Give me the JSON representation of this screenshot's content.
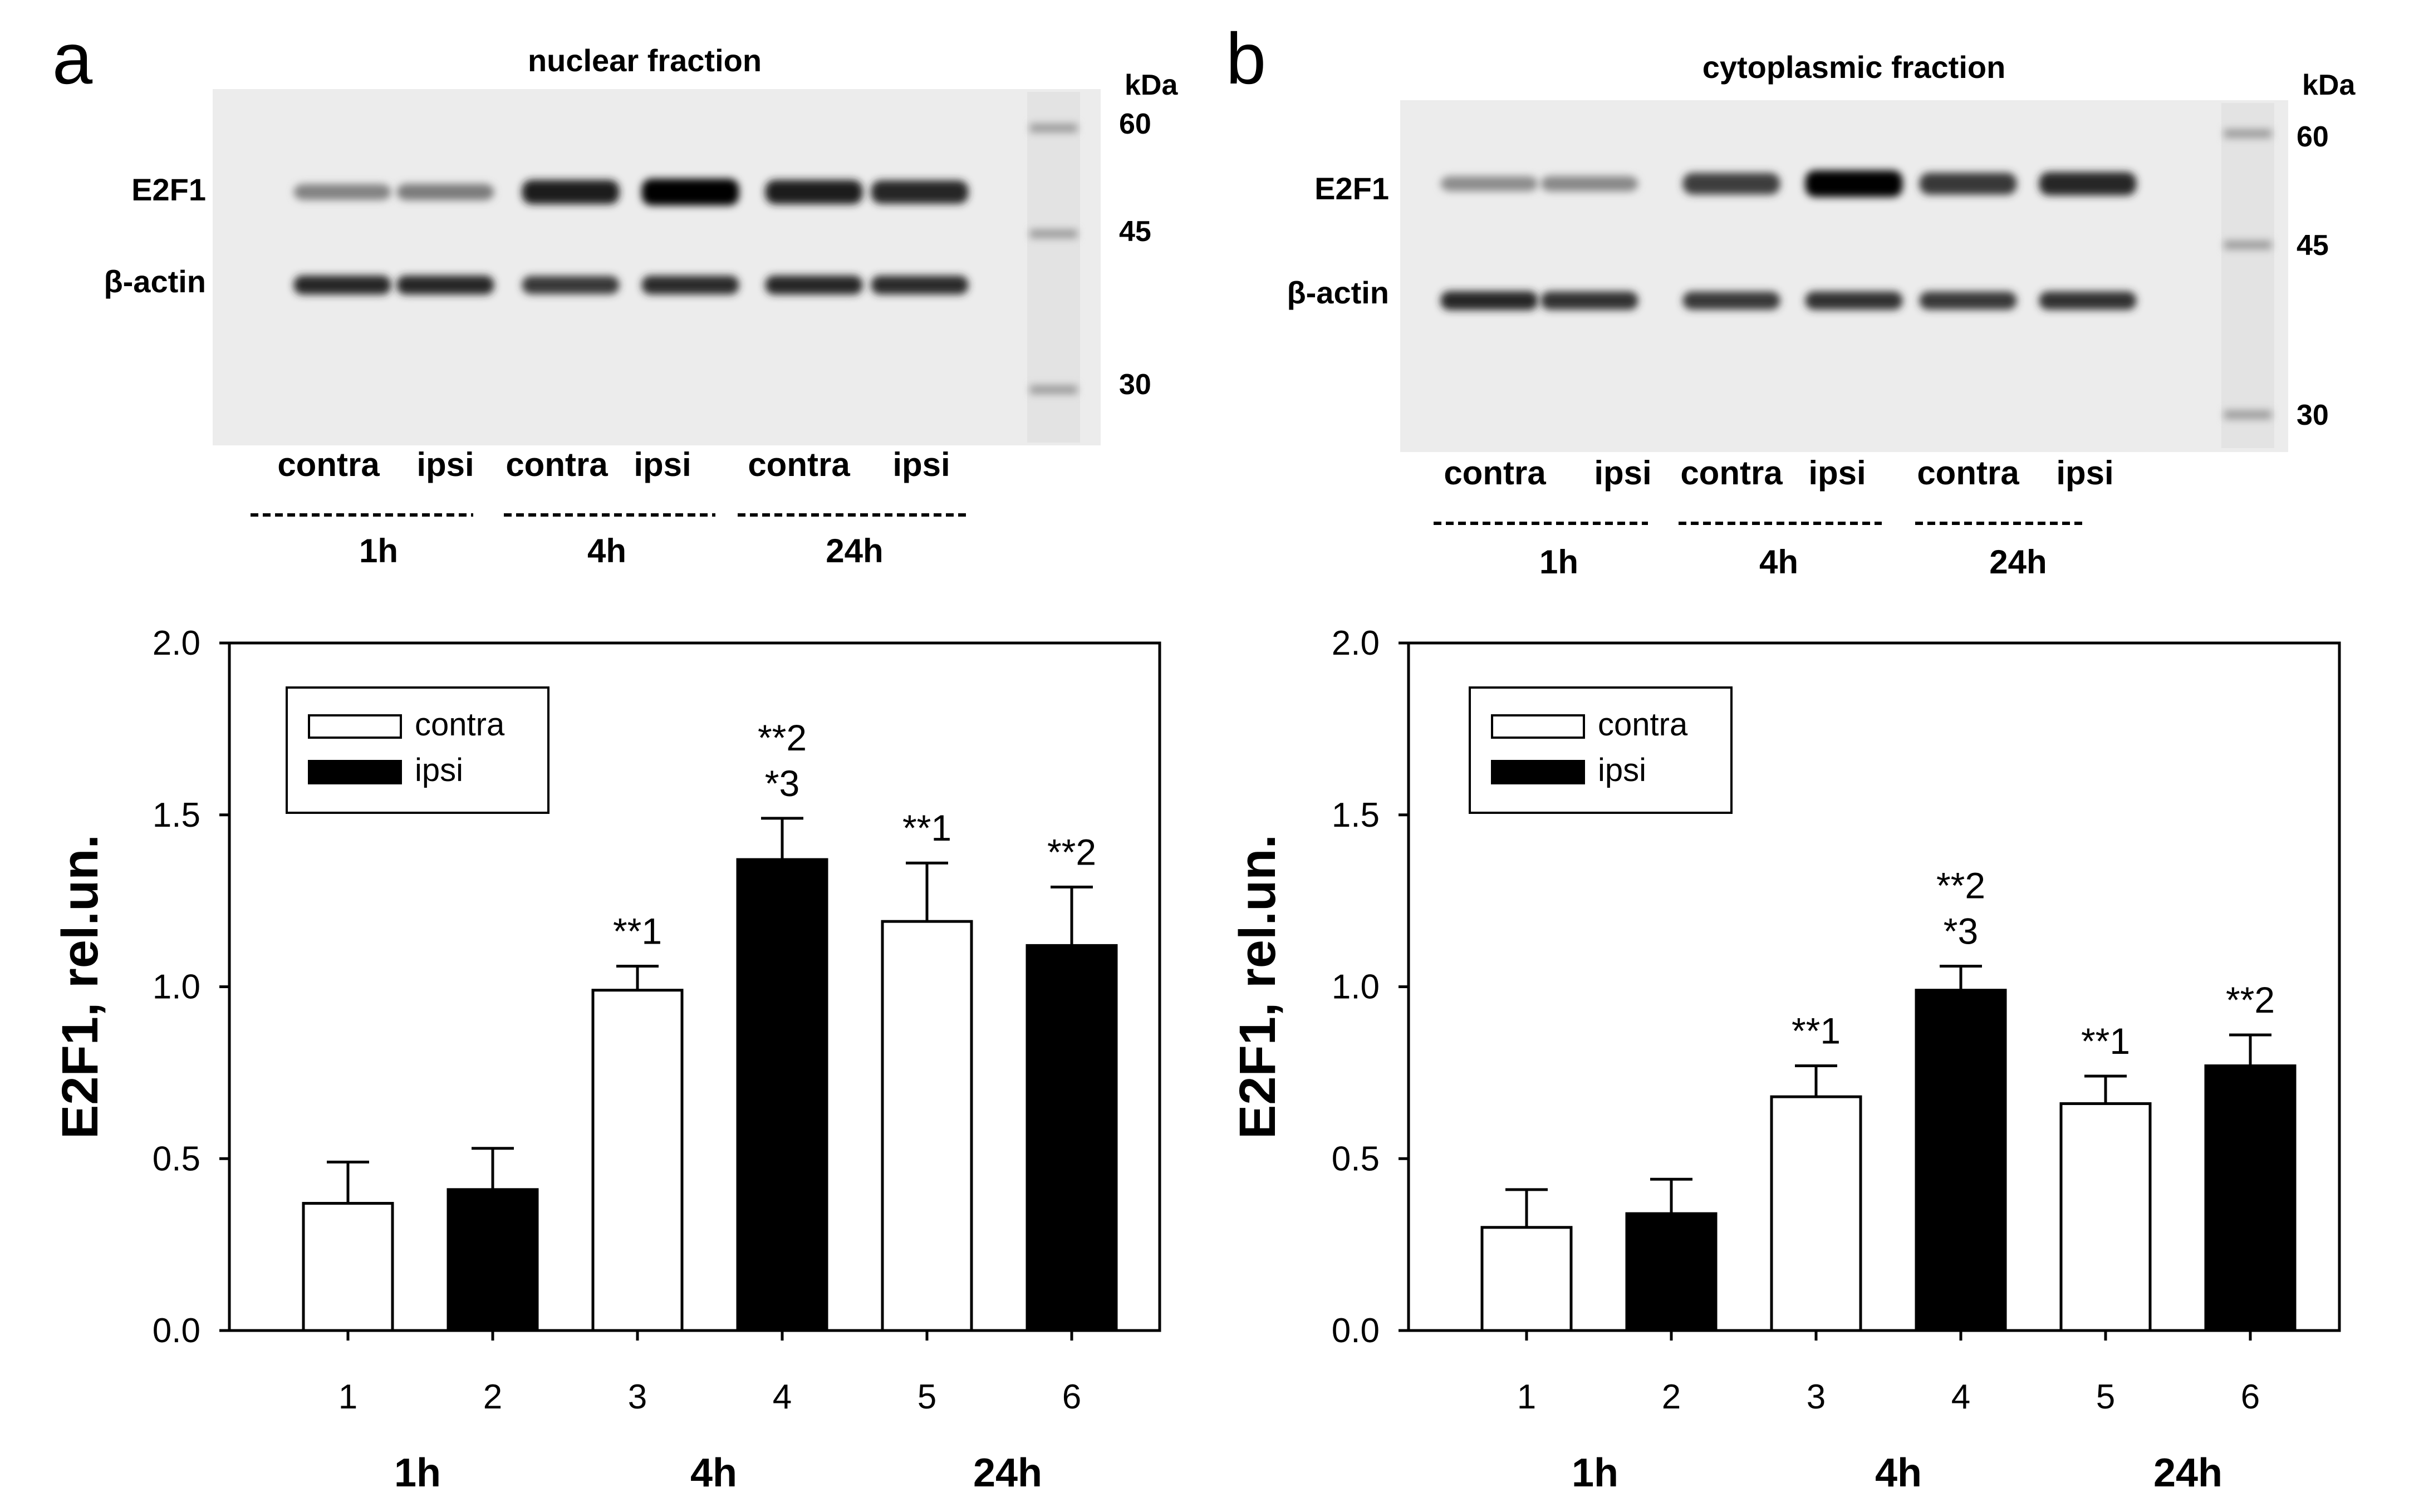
{
  "panels": [
    {
      "letter": "a",
      "blot": {
        "title": "nuclear fraction",
        "protein_labels": [
          "E2F1",
          "β-actin"
        ],
        "kda_unit": "kDa",
        "marker_labels": [
          "60",
          "45",
          "30"
        ],
        "lane_labels": [
          "contra",
          "ipsi",
          "contra",
          "ipsi",
          "contra",
          "ipsi"
        ],
        "time_labels": [
          "1h",
          "4h",
          "24h"
        ],
        "e2f1_intensity": [
          0.35,
          0.38,
          0.85,
          1.0,
          0.85,
          0.8
        ],
        "actin_intensity": [
          0.8,
          0.8,
          0.72,
          0.78,
          0.8,
          0.78
        ]
      }
    },
    {
      "letter": "b",
      "blot": {
        "title": "cytoplasmic fraction",
        "protein_labels": [
          "E2F1",
          "β-actin"
        ],
        "kda_unit": "kDa",
        "marker_labels": [
          "60",
          "45",
          "30"
        ],
        "lane_labels": [
          "contra",
          "ipsi",
          "contra",
          "ipsi",
          "contra",
          "ipsi"
        ],
        "time_labels": [
          "1h",
          "4h",
          "24h"
        ],
        "e2f1_intensity": [
          0.3,
          0.32,
          0.7,
          1.0,
          0.72,
          0.8
        ],
        "actin_intensity": [
          0.8,
          0.75,
          0.72,
          0.75,
          0.72,
          0.75
        ]
      }
    }
  ],
  "chart_data": [
    {
      "type": "bar",
      "panel": "a",
      "categories": [
        "1",
        "2",
        "3",
        "4",
        "5",
        "6"
      ],
      "group_labels": [
        "1h",
        "4h",
        "24h"
      ],
      "ylabel": "E2F1, rel.un.",
      "xlabel": "",
      "ylim": [
        0,
        2.0
      ],
      "yticks": [
        "0.0",
        "0.5",
        "1.0",
        "1.5",
        "2.0"
      ],
      "series": [
        {
          "name": "contra",
          "color": "#ffffff",
          "x": [
            1,
            3,
            5
          ],
          "values": [
            0.37,
            0.99,
            1.19
          ],
          "errors": [
            0.12,
            0.07,
            0.17
          ]
        },
        {
          "name": "ipsi",
          "color": "#000000",
          "x": [
            2,
            4,
            6
          ],
          "values": [
            0.41,
            1.37,
            1.12
          ],
          "errors": [
            0.12,
            0.12,
            0.17
          ]
        }
      ],
      "annotations": [
        {
          "x": 3,
          "lines": [
            "**1"
          ]
        },
        {
          "x": 4,
          "lines": [
            "**2",
            "*3"
          ]
        },
        {
          "x": 5,
          "lines": [
            "**1"
          ]
        },
        {
          "x": 6,
          "lines": [
            "**2"
          ]
        }
      ],
      "legend": "top-left"
    },
    {
      "type": "bar",
      "panel": "b",
      "categories": [
        "1",
        "2",
        "3",
        "4",
        "5",
        "6"
      ],
      "group_labels": [
        "1h",
        "4h",
        "24h"
      ],
      "ylabel": "E2F1, rel.un.",
      "xlabel": "",
      "ylim": [
        0,
        2.0
      ],
      "yticks": [
        "0.0",
        "0.5",
        "1.0",
        "1.5",
        "2.0"
      ],
      "series": [
        {
          "name": "contra",
          "color": "#ffffff",
          "x": [
            1,
            3,
            5
          ],
          "values": [
            0.3,
            0.68,
            0.66
          ],
          "errors": [
            0.11,
            0.09,
            0.08
          ]
        },
        {
          "name": "ipsi",
          "color": "#000000",
          "x": [
            2,
            4,
            6
          ],
          "values": [
            0.34,
            0.99,
            0.77
          ],
          "errors": [
            0.1,
            0.07,
            0.09
          ]
        }
      ],
      "annotations": [
        {
          "x": 3,
          "lines": [
            "**1"
          ]
        },
        {
          "x": 4,
          "lines": [
            "**2",
            "*3"
          ]
        },
        {
          "x": 5,
          "lines": [
            "**1"
          ]
        },
        {
          "x": 6,
          "lines": [
            "**2"
          ]
        }
      ],
      "legend": "top-left"
    }
  ]
}
